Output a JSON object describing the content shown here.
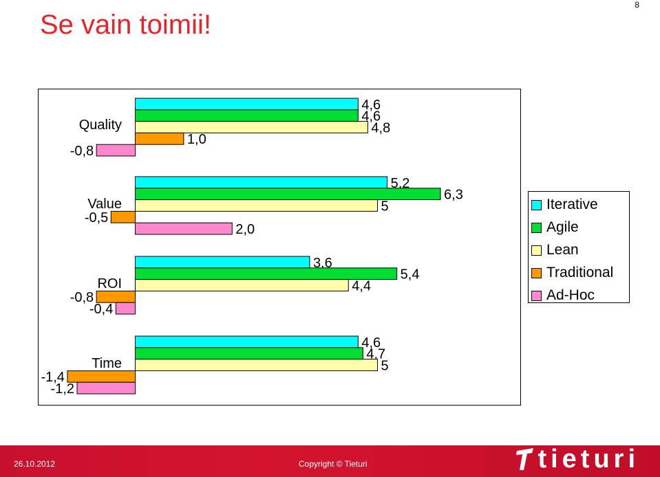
{
  "slide": {
    "title": "Se vain toimii!",
    "page_number": "8"
  },
  "footer": {
    "date": "26.10.2012",
    "copyright": "Copyright © Tieturi",
    "logo_text": "tieturi"
  },
  "colors": {
    "title": "#e8242a",
    "footer_bg": "#c8102e"
  },
  "chart_data": {
    "type": "bar",
    "orientation": "horizontal",
    "categories": [
      "Quality",
      "Value",
      "ROI",
      "Time"
    ],
    "series": [
      {
        "name": "Iterative",
        "color": "#00ffff",
        "values": [
          4.6,
          5.2,
          3.6,
          4.6
        ],
        "labels": [
          "4,6",
          "5,2",
          "3,6",
          "4,6"
        ]
      },
      {
        "name": "Agile",
        "color": "#00dd33",
        "values": [
          4.6,
          6.3,
          5.4,
          4.7
        ],
        "labels": [
          "4,6",
          "6,3",
          "5,4",
          "4,7"
        ]
      },
      {
        "name": "Lean",
        "color": "#ffffaa",
        "values": [
          4.8,
          5.0,
          4.4,
          5.0
        ],
        "labels": [
          "4,8",
          "5",
          "4,4",
          "5"
        ]
      },
      {
        "name": "Traditional",
        "color": "#ff9900",
        "values": [
          1.0,
          -0.5,
          -0.8,
          -1.4
        ],
        "labels": [
          "1,0",
          "-0,5",
          "-0,8",
          "-1,4"
        ]
      },
      {
        "name": "Ad-Hoc",
        "color": "#ff88cc",
        "values": [
          -0.8,
          2.0,
          -0.4,
          -1.2
        ],
        "labels": [
          "-0,8",
          "2,0",
          "-0,4",
          "-1,2"
        ]
      }
    ],
    "legend_position": "right",
    "grid": false,
    "xlim": [
      -1.4,
      6.3
    ]
  }
}
